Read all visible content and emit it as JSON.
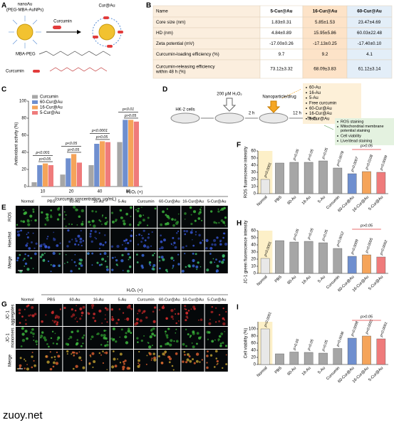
{
  "panel_letters": [
    "A",
    "B",
    "C",
    "D",
    "E",
    "F",
    "G",
    "H",
    "I"
  ],
  "panel_a": {
    "nanoau": "nanoAu",
    "nanoau_sub": "(PEG-MBA-AuNPs)",
    "reagent": "Curcumin",
    "product": "Cur@Au",
    "mba_peg": "MBA-PEG",
    "curcumin": "Curcumin"
  },
  "table": {
    "header": [
      "Name",
      "5-Cur@Au",
      "16-Cur@Au",
      "60-Cur@Au"
    ],
    "rows": [
      [
        "Core size (nm)",
        "1.83±0.31",
        "5.85±1.53",
        "23.47±4.69"
      ],
      [
        "HD (nm)",
        "4.84±0.89",
        "15.95±5.86",
        "60.03±22.48"
      ],
      [
        "Zeta potential (mV)",
        "-17.00±0.26",
        "-17.13±0.25",
        "-17.40±0.10"
      ],
      [
        "Curcumin-loading efficiency (%)",
        "9.7",
        "9.2",
        "4.1"
      ],
      [
        [
          "Curcumin-releasing efficiency",
          "within 48 h (%)"
        ],
        "73.12±3.32",
        "68.09±3.83",
        "61.12±3.14"
      ]
    ]
  },
  "panel_d": {
    "cells": "HK-2 cells",
    "treatment": "200 μM H₂O₂",
    "agent": "Nanoparticle/drug",
    "time1": "2 h",
    "time2": "12 h",
    "tests": "Tests",
    "groups": [
      "60-Au",
      "16-Au",
      "5-Au",
      "Free curcumin",
      "60-Cur@Au",
      "16-Cur@Au",
      "5-Cur@Au"
    ],
    "group_colors": [
      "#000000",
      "#000000",
      "#000000",
      "#000000",
      "#3f6fcf",
      "#f08a2a",
      "#e23b3b"
    ],
    "assays": [
      "ROS staining",
      [
        "Mitochondrial membrane",
        "potential staining"
      ],
      "Cell viability",
      "Live/dead staining"
    ]
  },
  "panel_e": {
    "condition": "H₂O₂ (+)",
    "columns": [
      "Normal",
      "PBS",
      "60-Au",
      "16-Au",
      "5-Au",
      "Curcumin",
      "60-Cur@Au",
      "16-Cur@Au",
      "5-Cur@Au"
    ],
    "column_colors": [
      "#000000",
      "#000000",
      "#000000",
      "#000000",
      "#000000",
      "#000000",
      "#3f6fcf",
      "#f08a2a",
      "#e23b3b"
    ],
    "rows": [
      "ROS",
      "Hoechst",
      "Merge"
    ],
    "row_colors": [
      "#2e9a2e",
      "#2f4fcf",
      "#d03030"
    ]
  },
  "panel_g": {
    "condition": "H₂O₂ (+)",
    "columns": [
      "Normal",
      "PBS",
      "60-Au",
      "16-Au",
      "5-Au",
      "Curcumin",
      "60-Cur@Au",
      "16-Cur@Au",
      "5-Cur@Au"
    ],
    "column_colors": [
      "#000000",
      "#000000",
      "#000000",
      "#000000",
      "#000000",
      "#000000",
      "#3f6fcf",
      "#f08a2a",
      "#e23b3b"
    ],
    "rows": [
      [
        "JC-1",
        "aggregates"
      ],
      [
        "JC-1",
        "monomers"
      ],
      "Merge"
    ],
    "row_colors": [
      "#d03030",
      "#2e9a2e",
      "#d03030"
    ]
  },
  "chart_data": [
    {
      "type": "grouped_bar",
      "categories": [
        "10",
        "20",
        "40",
        "80"
      ],
      "series": [
        {
          "name": "Curcumin",
          "color": "#a6a6a6",
          "values": [
            5,
            14,
            25,
            52
          ]
        },
        {
          "name": "60-Cur@Au",
          "color": "#6f8fcf",
          "values": [
            25,
            33,
            50,
            78
          ]
        },
        {
          "name": "16-Cur@Au",
          "color": "#f5a45a",
          "values": [
            27,
            38,
            53,
            78
          ]
        },
        {
          "name": "5-Cur@Au",
          "color": "#ef7b7b",
          "values": [
            25,
            28,
            52,
            76
          ]
        }
      ],
      "ylim": [
        0,
        100
      ],
      "yticks": [
        0,
        20,
        40,
        60,
        80,
        100
      ],
      "y_label": "Antioxidant activity (%)",
      "x_label": "(curcumin concentration, μg/mL)",
      "p_values": [
        [
          "p<0.001",
          "p>0.05"
        ],
        [
          "p<0.05",
          "p>0.05"
        ],
        [
          "p<0.0001",
          "p>0.05"
        ],
        [
          "p<0.01",
          "p>0.05"
        ]
      ]
    },
    {
      "type": "bar",
      "categories": [
        "Normal",
        "PBS",
        "60-Au",
        "16-Au",
        "5-Au",
        "Curcumin",
        "60-Cur@Au",
        "16-Cur@Au",
        "5-Cur@Au"
      ],
      "values": [
        20,
        43,
        44,
        44,
        46,
        36,
        28,
        31,
        30
      ],
      "colors": [
        "#e8e8e8",
        "#a6a6a6",
        "#a6a6a6",
        "#a6a6a6",
        "#a6a6a6",
        "#a6a6a6",
        "#6f8fcf",
        "#f5a45a",
        "#ef7b7b"
      ],
      "label_colors": [
        "#000000",
        "#000000",
        "#000000",
        "#000000",
        "#000000",
        "#000000",
        "#3f6fcf",
        "#f08a2a",
        "#e23b3b"
      ],
      "ylim": [
        0,
        60
      ],
      "yticks": [
        0,
        10,
        20,
        30,
        40,
        50,
        60
      ],
      "y_label": "ROS fluorescence intensity",
      "p_values": [
        "p<0.0001",
        null,
        "p>0.05",
        "p>0.05",
        "p>0.05",
        "p=0.0078",
        "p=0.0007",
        "p=0.0108",
        "p=0.0009"
      ],
      "bracket_label": "p>0.05"
    },
    {
      "type": "bar",
      "categories": [
        "Normal",
        "PBS",
        "60-Au",
        "16-Au",
        "5-Au",
        "Curcumin",
        "60-Cur@Au",
        "16-Cur@Au",
        "5-Cur@Au"
      ],
      "values": [
        21,
        46,
        44,
        45,
        43,
        35,
        24,
        26,
        23
      ],
      "colors": [
        "#e8e8e8",
        "#a6a6a6",
        "#a6a6a6",
        "#a6a6a6",
        "#a6a6a6",
        "#a6a6a6",
        "#6f8fcf",
        "#f5a45a",
        "#ef7b7b"
      ],
      "label_colors": [
        "#000000",
        "#000000",
        "#000000",
        "#000000",
        "#000000",
        "#000000",
        "#3f6fcf",
        "#f08a2a",
        "#e23b3b"
      ],
      "ylim": [
        0,
        60
      ],
      "yticks": [
        0,
        10,
        20,
        30,
        40,
        50,
        60
      ],
      "y_label": "JC-1 green fluorescence intensity",
      "p_values": [
        "p<0.0001",
        null,
        "p>0.05",
        "p>0.05",
        "p>0.05",
        "p=0.0012",
        "p=0.0009",
        "p=0.0005",
        "p=0.0002"
      ],
      "bracket_label": "p>0.05"
    },
    {
      "type": "bar",
      "categories": [
        "Normal",
        "PBS",
        "60-Au",
        "16-Au",
        "5-Au",
        "Curcumin",
        "60-Cur@Au",
        "16-Cur@Au",
        "5-Cur@Au"
      ],
      "values": [
        100,
        30,
        35,
        34,
        32,
        45,
        74,
        80,
        72
      ],
      "colors": [
        "#e8e8e8",
        "#a6a6a6",
        "#a6a6a6",
        "#a6a6a6",
        "#a6a6a6",
        "#a6a6a6",
        "#6f8fcf",
        "#f5a45a",
        "#ef7b7b"
      ],
      "label_colors": [
        "#000000",
        "#000000",
        "#000000",
        "#000000",
        "#000000",
        "#000000",
        "#3f6fcf",
        "#f08a2a",
        "#e23b3b"
      ],
      "ylim": [
        0,
        120
      ],
      "yticks": [
        0,
        20,
        40,
        60,
        80,
        100
      ],
      "y_label": "Cell viability (%)",
      "p_values": [
        "p<0.0001",
        null,
        "p>0.05",
        "p>0.05",
        "p>0.05",
        "p=0.0036",
        "p=0.0008",
        "p<0.0001",
        "p<0.0001"
      ],
      "bracket_label": "p>0.05"
    }
  ],
  "watermark": "zuoy.net"
}
